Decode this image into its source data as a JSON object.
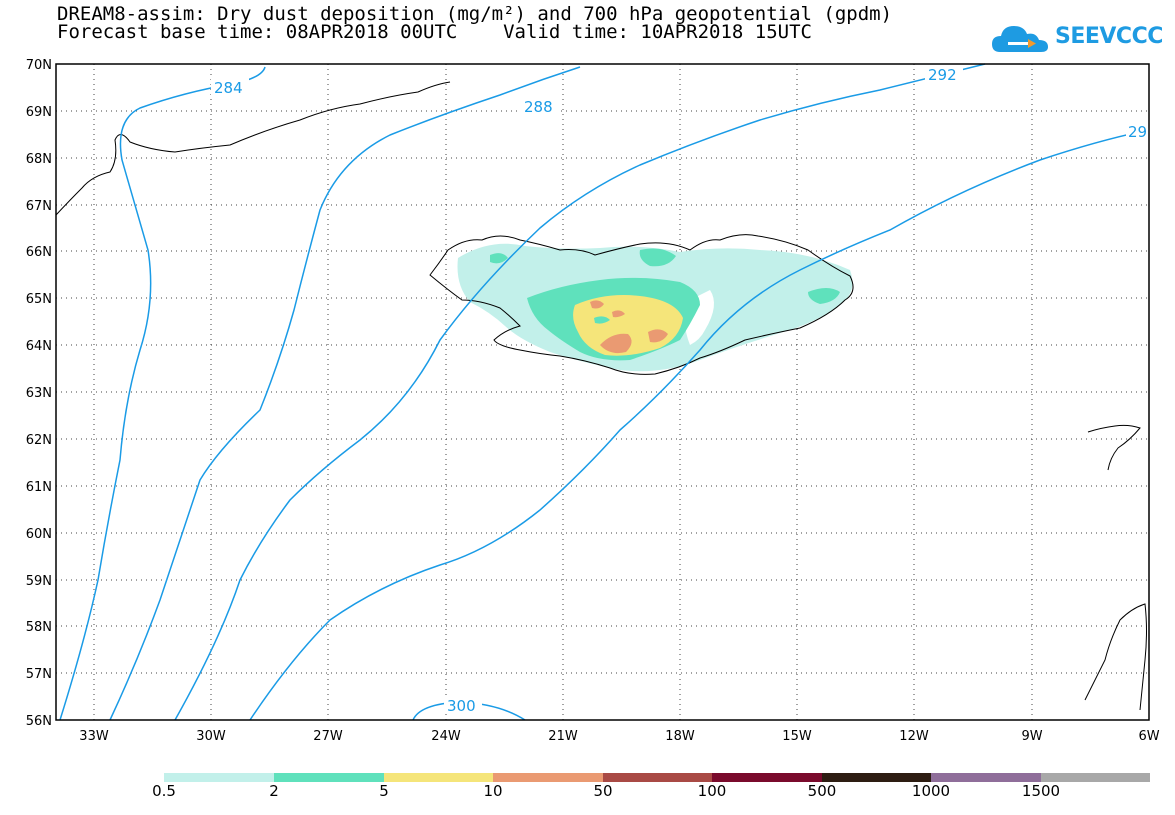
{
  "title_line1": "DREAM8-assim: Dry dust deposition (mg/m²) and 700 hPa geopotential (gpdm)",
  "title_line2": "Forecast base time: 08APR2018 00UTC    Valid time: 10APR2018 15UTC",
  "logo": {
    "text": "SEEVCCC",
    "icon": "cloud-icon",
    "color": "#1e9be2"
  },
  "map": {
    "lon_range": [
      -35,
      -6
    ],
    "lat_range": [
      56,
      70
    ],
    "lat_labels": [
      "70N",
      "69N",
      "68N",
      "67N",
      "66N",
      "65N",
      "64N",
      "63N",
      "62N",
      "61N",
      "60N",
      "59N",
      "58N",
      "57N",
      "56N"
    ],
    "lon_labels": [
      "33W",
      "30W",
      "27W",
      "24W",
      "21W",
      "18W",
      "15W",
      "12W",
      "9W",
      "6W"
    ],
    "contour_color": "#1a9be6",
    "contour_labels": [
      "284",
      "288",
      "292",
      "29",
      "300"
    ]
  },
  "legend": {
    "colors": [
      "#c2f0ea",
      "#5fe1bc",
      "#f5e57a",
      "#ea9a72",
      "#a94a45",
      "#7a0a2c",
      "#2d1d12",
      "#8f6e9a",
      "#a8a8a8"
    ],
    "labels": [
      "0.5",
      "2",
      "5",
      "10",
      "50",
      "100",
      "500",
      "1000",
      "1500"
    ]
  }
}
